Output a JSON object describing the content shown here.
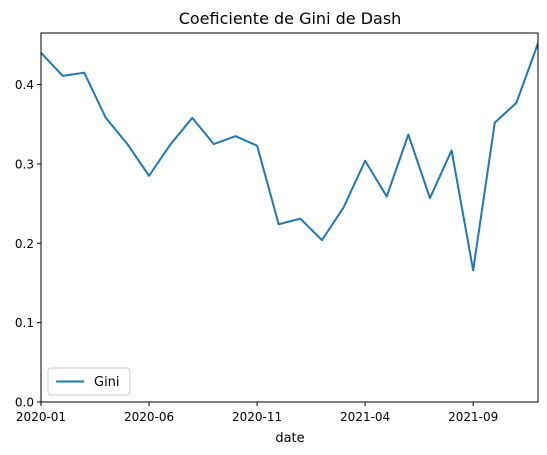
{
  "chart_data": {
    "type": "line",
    "title": "Coeficiente de Gini de Dash",
    "xlabel": "date",
    "ylabel": "",
    "xlim": [
      "2020-01",
      "2021-12"
    ],
    "ylim": [
      0,
      0.465
    ],
    "x_ticks": [
      "2020-01",
      "2020-06",
      "2020-11",
      "2021-04",
      "2021-09"
    ],
    "y_ticks": [
      "0.0",
      "0.1",
      "0.2",
      "0.3",
      "0.4"
    ],
    "legend_position": "lower left",
    "grid": false,
    "series": [
      {
        "name": "Gini",
        "color": "#1f77b4",
        "x": [
          "2020-01",
          "2020-02",
          "2020-03",
          "2020-04",
          "2020-05",
          "2020-06",
          "2020-07",
          "2020-08",
          "2020-09",
          "2020-10",
          "2020-11",
          "2020-12",
          "2021-01",
          "2021-02",
          "2021-03",
          "2021-04",
          "2021-05",
          "2021-06",
          "2021-07",
          "2021-08",
          "2021-09",
          "2021-10",
          "2021-11",
          "2021-12"
        ],
        "values": [
          0.44,
          0.411,
          0.415,
          0.358,
          0.325,
          0.285,
          0.325,
          0.358,
          0.325,
          0.335,
          0.323,
          0.224,
          0.231,
          0.204,
          0.245,
          0.304,
          0.259,
          0.337,
          0.257,
          0.317,
          0.166,
          0.352,
          0.377,
          0.452
        ]
      }
    ]
  }
}
